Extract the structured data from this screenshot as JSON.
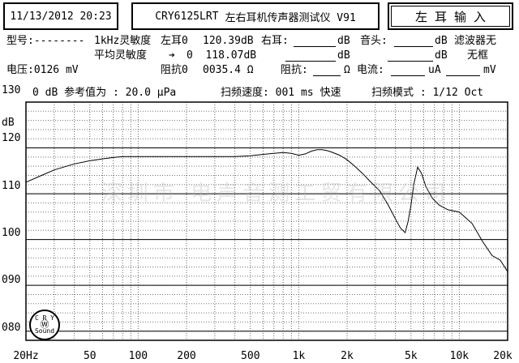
{
  "header": {
    "datetime": "11/13/2012 20:23",
    "model": "CRY6125LRT",
    "title": "左右耳机传声器测试仪 V91",
    "mode_button": "左 耳  输 入"
  },
  "info": {
    "model_label": "型号:--------",
    "sens_1k_label": "1kHz灵敏度",
    "avg_sens_label": "平均灵敏度",
    "arrow": "➔",
    "voltage": "电压:0126 mV",
    "left_ear_label": "左耳0",
    "left_ear_value": "120.39dB",
    "avg_value": "0  118.07dB",
    "impedance_label": "阻抗0",
    "impedance_value": "0035.4 Ω",
    "right_ear_label": "右耳:",
    "right_ear_unit": "dB",
    "right_ear_unit2": "dB",
    "right_imp_label": "阻抗:",
    "right_imp_unit": "Ω",
    "head_label": "音头:",
    "head_unit": "dB",
    "head_unit2": "dB",
    "current_label": "电流:",
    "current_unit": "uA",
    "mv_unit": "mV",
    "filter_label": "滤波器无",
    "filter_label2": "无框"
  },
  "chart_header": {
    "ref": "0 dB 参考值为 : 20.0 μPa",
    "sweep_speed": "扫频速度: 001 ms 快速",
    "sweep_mode": "扫频模式 : 1/12 Oct"
  },
  "watermark": "深圳市 电声音测工贸有限公司",
  "logo": {
    "top": "C R Y",
    "bottom": "Sound"
  },
  "chart_data": {
    "type": "line",
    "title": "",
    "ylabel": "dB",
    "xscale": "log",
    "xlim": [
      20,
      20000
    ],
    "ylim": [
      78,
      130
    ],
    "y_ticks": [
      "130",
      "120",
      "110",
      "100",
      "090",
      "080"
    ],
    "x_ticks": [
      {
        "label": "20Hz",
        "x": 20
      },
      {
        "label": "50",
        "x": 50
      },
      {
        "label": "100",
        "x": 100
      },
      {
        "label": "200",
        "x": 200
      },
      {
        "label": "500",
        "x": 500
      },
      {
        "label": "1k",
        "x": 1000
      },
      {
        "label": "2k",
        "x": 2000
      },
      {
        "label": "5k",
        "x": 5000
      },
      {
        "label": "10k",
        "x": 10000
      },
      {
        "label": "20k",
        "x": 20000
      }
    ],
    "grid": true,
    "series": [
      {
        "color": "#000000",
        "x": [
          20,
          25,
          30,
          40,
          50,
          60,
          70,
          80,
          100,
          150,
          200,
          300,
          400,
          500,
          600,
          700,
          800,
          900,
          1000,
          1100,
          1200,
          1300,
          1400,
          1500,
          1600,
          1800,
          2000,
          2200,
          2500,
          2800,
          3200,
          3600,
          4000,
          4300,
          4600,
          4800,
          5000,
          5200,
          5500,
          5800,
          6200,
          6800,
          7500,
          8500,
          10000,
          12000,
          14000,
          16000,
          18000,
          20000
        ],
        "values": [
          112.5,
          114,
          115.2,
          116.5,
          117.2,
          117.6,
          117.9,
          118.1,
          118.1,
          118.1,
          118.1,
          118.1,
          118.1,
          118.3,
          118.6,
          118.8,
          119,
          118.8,
          118.4,
          118.7,
          119.3,
          119.6,
          119.6,
          119.4,
          119.1,
          118.4,
          117.4,
          116.2,
          114.4,
          112.6,
          110.6,
          107.6,
          104.5,
          102.5,
          101.5,
          104,
          107.5,
          112,
          115.8,
          114.5,
          111.5,
          109,
          107.5,
          106.5,
          106,
          103.5,
          99.5,
          96.5,
          95.5,
          93
        ]
      }
    ]
  }
}
